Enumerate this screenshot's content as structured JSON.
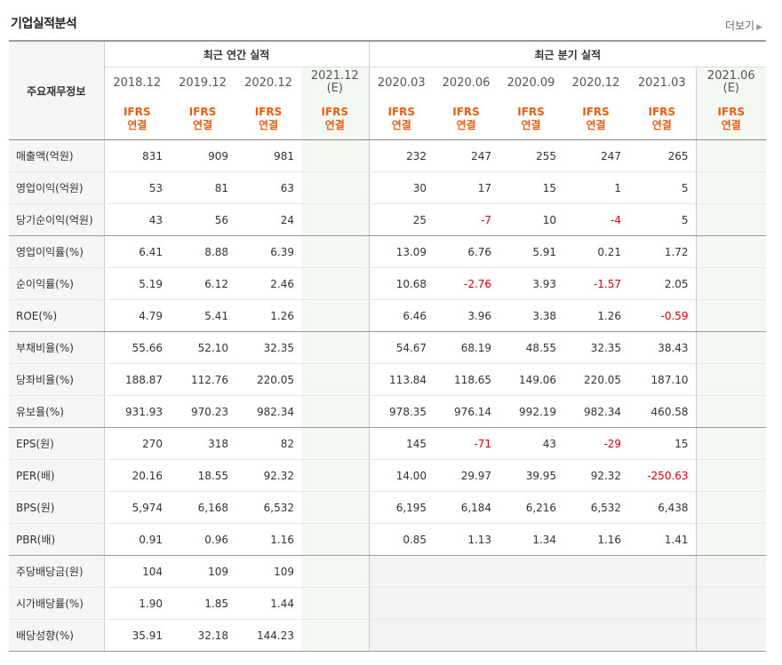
{
  "title": "기업실적분석",
  "more_label": "더보기",
  "header": {
    "rowhead": "주요재무정보",
    "annual_group": "최근 연간 실적",
    "quarter_group": "최근 분기 실적",
    "annual_periods": [
      "2018.12",
      "2019.12",
      "2020.12"
    ],
    "annual_estimate": {
      "date": "2021.12",
      "mark": "(E)"
    },
    "quarter_periods": [
      "2020.03",
      "2020.06",
      "2020.09",
      "2020.12",
      "2021.03"
    ],
    "quarter_estimate": {
      "date": "2021.06",
      "mark": "(E)"
    },
    "ifrs": "IFRS",
    "consolidated": "연결"
  },
  "rows": [
    {
      "label": "매출액(억원)",
      "annual": [
        "831",
        "909",
        "981",
        ""
      ],
      "quarter": [
        "232",
        "247",
        "255",
        "247",
        "265",
        ""
      ]
    },
    {
      "label": "영업이익(억원)",
      "annual": [
        "53",
        "81",
        "63",
        ""
      ],
      "quarter": [
        "30",
        "17",
        "15",
        "1",
        "5",
        ""
      ]
    },
    {
      "label": "당기순이익(억원)",
      "annual": [
        "43",
        "56",
        "24",
        ""
      ],
      "quarter": [
        "25",
        "-7",
        "10",
        "-4",
        "5",
        ""
      ]
    },
    {
      "label": "영업이익률(%)",
      "annual": [
        "6.41",
        "8.88",
        "6.39",
        ""
      ],
      "quarter": [
        "13.09",
        "6.76",
        "5.91",
        "0.21",
        "1.72",
        ""
      ]
    },
    {
      "label": "순이익률(%)",
      "annual": [
        "5.19",
        "6.12",
        "2.46",
        ""
      ],
      "quarter": [
        "10.68",
        "-2.76",
        "3.93",
        "-1.57",
        "2.05",
        ""
      ]
    },
    {
      "label": "ROE(%)",
      "annual": [
        "4.79",
        "5.41",
        "1.26",
        ""
      ],
      "quarter": [
        "6.46",
        "3.96",
        "3.38",
        "1.26",
        "-0.59",
        ""
      ]
    },
    {
      "label": "부채비율(%)",
      "annual": [
        "55.66",
        "52.10",
        "32.35",
        ""
      ],
      "quarter": [
        "54.67",
        "68.19",
        "48.55",
        "32.35",
        "38.43",
        ""
      ]
    },
    {
      "label": "당좌비율(%)",
      "annual": [
        "188.87",
        "112.76",
        "220.05",
        ""
      ],
      "quarter": [
        "113.84",
        "118.65",
        "149.06",
        "220.05",
        "187.10",
        ""
      ]
    },
    {
      "label": "유보율(%)",
      "annual": [
        "931.93",
        "970.23",
        "982.34",
        ""
      ],
      "quarter": [
        "978.35",
        "976.14",
        "992.19",
        "982.34",
        "460.58",
        ""
      ]
    },
    {
      "label": "EPS(원)",
      "annual": [
        "270",
        "318",
        "82",
        ""
      ],
      "quarter": [
        "145",
        "-71",
        "43",
        "-29",
        "15",
        ""
      ]
    },
    {
      "label": "PER(배)",
      "annual": [
        "20.16",
        "18.55",
        "92.32",
        ""
      ],
      "quarter": [
        "14.00",
        "29.97",
        "39.95",
        "92.32",
        "-250.63",
        ""
      ]
    },
    {
      "label": "BPS(원)",
      "annual": [
        "5,974",
        "6,168",
        "6,532",
        ""
      ],
      "quarter": [
        "6,195",
        "6,184",
        "6,216",
        "6,532",
        "6,438",
        ""
      ]
    },
    {
      "label": "PBR(배)",
      "annual": [
        "0.91",
        "0.96",
        "1.16",
        ""
      ],
      "quarter": [
        "0.85",
        "1.13",
        "1.34",
        "1.16",
        "1.41",
        ""
      ]
    },
    {
      "label": "주당배당금(원)",
      "annual": [
        "104",
        "109",
        "109",
        ""
      ],
      "quarter": [
        "",
        "",
        "",
        "",
        "",
        ""
      ]
    },
    {
      "label": "시가배당률(%)",
      "annual": [
        "1.90",
        "1.85",
        "1.44",
        ""
      ],
      "quarter": [
        "",
        "",
        "",
        "",
        "",
        ""
      ]
    },
    {
      "label": "배당성향(%)",
      "annual": [
        "35.91",
        "32.18",
        "144.23",
        ""
      ],
      "quarter": [
        "",
        "",
        "",
        "",
        "",
        ""
      ]
    }
  ]
}
